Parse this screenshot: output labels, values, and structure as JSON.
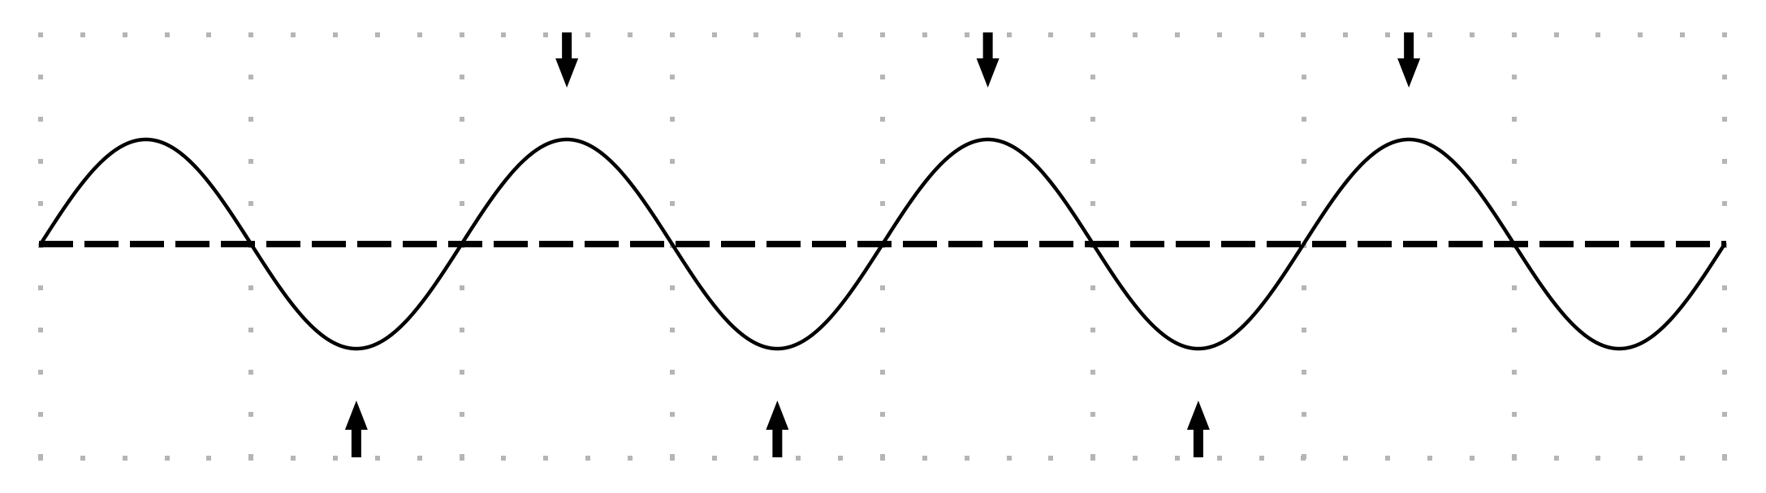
{
  "diagram": {
    "description_free": true,
    "grid": true,
    "wave": {
      "cycles": 4,
      "start_phase": "rising",
      "crests": 4,
      "troughs": 4
    },
    "centerline_style": "dashed",
    "down_arrows_at_crests": [
      2,
      3,
      4
    ],
    "up_arrows_at_troughs": [
      1,
      2,
      3
    ],
    "colors": {
      "background": "#ffffff",
      "stroke": "#000000",
      "grid_dot": "#b5b5b5"
    },
    "icons": {
      "down_arrow": "arrow-down-icon",
      "up_arrow": "arrow-up-icon"
    }
  }
}
